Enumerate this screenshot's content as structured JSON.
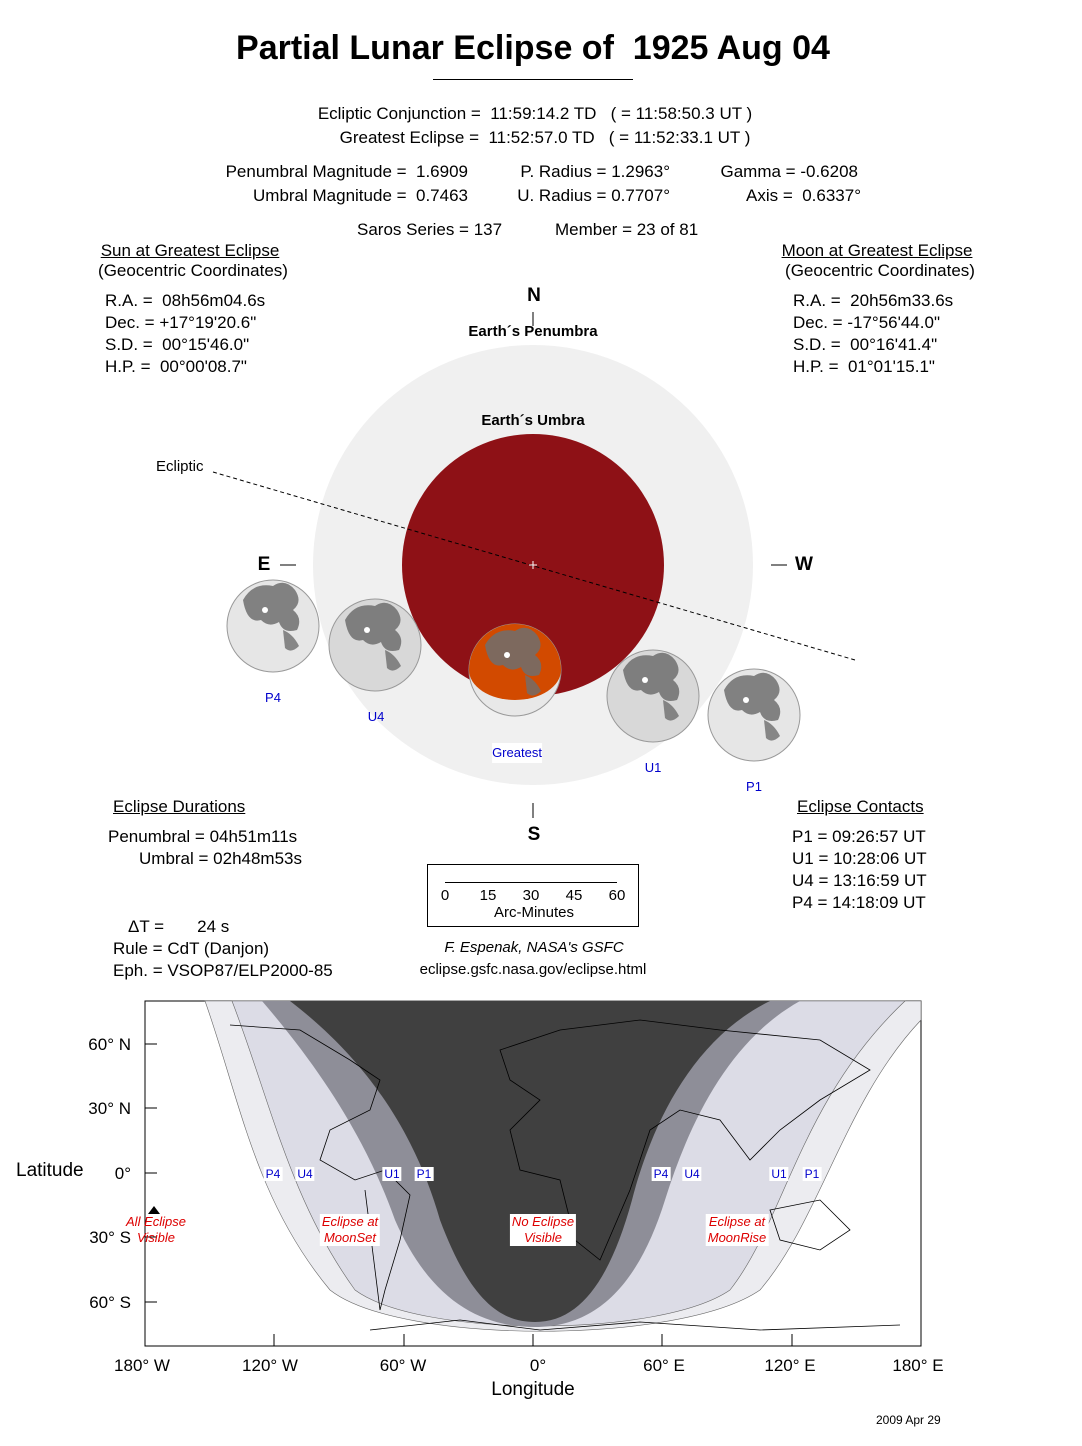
{
  "title": "Partial Lunar Eclipse of  1925 Aug 04",
  "circumstances": {
    "conjunction": "Ecliptic Conjunction =  11:59:14.2 TD   ( = 11:58:50.3 UT )",
    "greatest": "Greatest Eclipse =  11:52:57.0 TD   ( = 11:52:33.1 UT )",
    "pen_mag": "Penumbral Magnitude =  1.6909",
    "umb_mag": "Umbral Magnitude =  0.7463",
    "p_radius": "P. Radius = 1.2963°",
    "u_radius": "U. Radius = 0.7707°",
    "gamma": "Gamma = -0.6208",
    "axis": "Axis =  0.6337°",
    "saros": "Saros Series = 137",
    "member": "Member = 23 of 81"
  },
  "sun": {
    "heading": "Sun at Greatest Eclipse",
    "sub": "(Geocentric Coordinates)",
    "ra": "R.A. =  08h56m04.6s",
    "dec": "Dec. = +17°19'20.6\"",
    "sd": "S.D. =  00°15'46.0\"",
    "hp": "H.P. =  00°00'08.7\""
  },
  "moon": {
    "heading": "Moon at Greatest Eclipse",
    "sub": "(Geocentric Coordinates)",
    "ra": "R.A. =  20h56m33.6s",
    "dec": "Dec. = -17°56'44.0\"",
    "sd": "S.D. =  00°16'41.4\"",
    "hp": "H.P. =  01°01'15.1\""
  },
  "diagram": {
    "north": "N",
    "south": "S",
    "east": "E",
    "west": "W",
    "penumbra": "Earth´s Penumbra",
    "umbra": "Earth´s Umbra",
    "ecliptic": "Ecliptic",
    "positions": [
      "P4",
      "U4",
      "Greatest",
      "U1",
      "P1"
    ],
    "colors": {
      "penumbra": "#f0f0f0",
      "umbra": "#8e1116",
      "eclipsed_moon": "#d24a00",
      "moon": "#d8d8d8"
    }
  },
  "durations": {
    "heading": "Eclipse Durations",
    "penumbral": "Penumbral = 04h51m11s",
    "umbral": "Umbral = 02h48m53s"
  },
  "contacts": {
    "heading": "Eclipse Contacts",
    "p1": "P1 = 09:26:57 UT",
    "u1": "U1 = 10:28:06 UT",
    "u4": "U4 = 13:16:59 UT",
    "p4": "P4 = 14:18:09 UT"
  },
  "scale": {
    "ticks": [
      "0",
      "15",
      "30",
      "45",
      "60"
    ],
    "label": "Arc-Minutes"
  },
  "misc": {
    "delta_t": "ΔT =       24 s",
    "rule": "Rule = CdT (Danjon)",
    "eph": "Eph. = VSOP87/ELP2000-85",
    "credit": "F. Espenak, NASA's GSFC",
    "url": "eclipse.gsfc.nasa.gov/eclipse.html",
    "date": "2009 Apr 29"
  },
  "map": {
    "xlabel": "Longitude",
    "ylabel": "Latitude",
    "xticks": [
      "180° W",
      "120° W",
      "60° W",
      "0°",
      "60° E",
      "120° E",
      "180° E"
    ],
    "yticks": [
      "60° N",
      "30° N",
      "0°",
      "30° S",
      "60° S"
    ],
    "contact_labels_west": [
      "P4",
      "U4",
      "U1",
      "P1"
    ],
    "contact_labels_east": [
      "P4",
      "U4",
      "U1",
      "P1"
    ],
    "regions": {
      "all": "All Eclipse\nVisible",
      "moonset": "Eclipse at\nMoonSet",
      "none": "No Eclipse\nVisible",
      "moonrise": "Eclipse at\nMoonRise"
    }
  }
}
